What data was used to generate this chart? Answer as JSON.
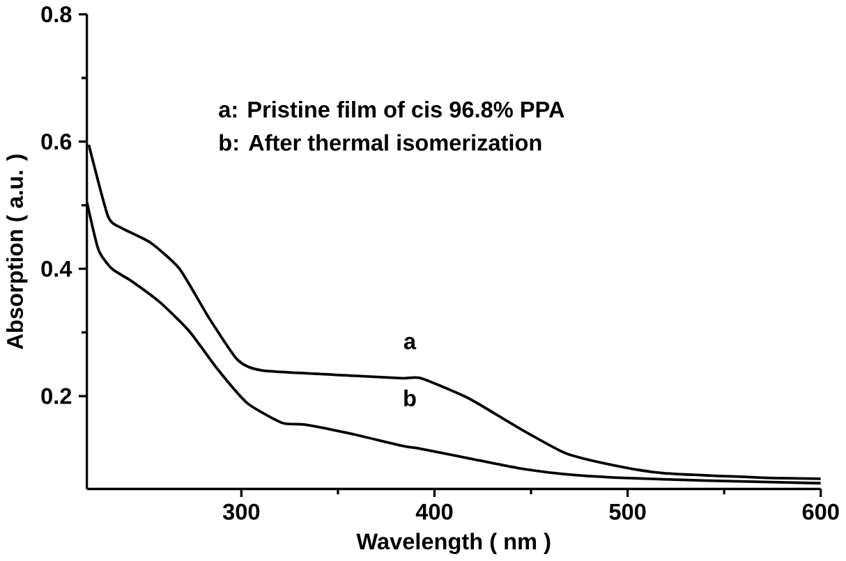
{
  "chart_data": {
    "type": "line",
    "xlabel": "Wavelength ( nm )",
    "ylabel": "Absorption ( a.u. )",
    "xlim": [
      220,
      600
    ],
    "ylim": [
      0.054,
      0.8
    ],
    "xticks": [
      300,
      400,
      500,
      600
    ],
    "yticks": [
      0.2,
      0.4,
      0.6,
      0.8
    ],
    "grid": false,
    "marker": "none",
    "line_style": "solid",
    "annotations": [
      "a: Pristine film of cis 96.8% PPA",
      "b: After thermal isomerization",
      "a",
      "b"
    ],
    "series": [
      {
        "color": "#000000",
        "x": [
          221,
          231,
          238,
          253,
          268,
          283,
          298,
          311,
          358,
          383,
          393,
          418,
          443,
          468,
          493,
          518,
          568,
          600
        ],
        "values": [
          0.595,
          0.482,
          0.464,
          0.441,
          0.4,
          0.324,
          0.257,
          0.24,
          0.232,
          0.228,
          0.228,
          0.196,
          0.151,
          0.11,
          0.091,
          0.079,
          0.072,
          0.07
        ]
      },
      {
        "color": "#000000",
        "x": [
          220,
          226,
          233,
          243,
          258,
          273,
          288,
          303,
          321,
          333,
          358,
          383,
          393,
          418,
          443,
          468,
          493,
          543,
          600
        ],
        "values": [
          0.505,
          0.43,
          0.4,
          0.381,
          0.347,
          0.302,
          0.241,
          0.189,
          0.158,
          0.155,
          0.14,
          0.122,
          0.117,
          0.102,
          0.087,
          0.077,
          0.072,
          0.067,
          0.063
        ]
      }
    ]
  }
}
